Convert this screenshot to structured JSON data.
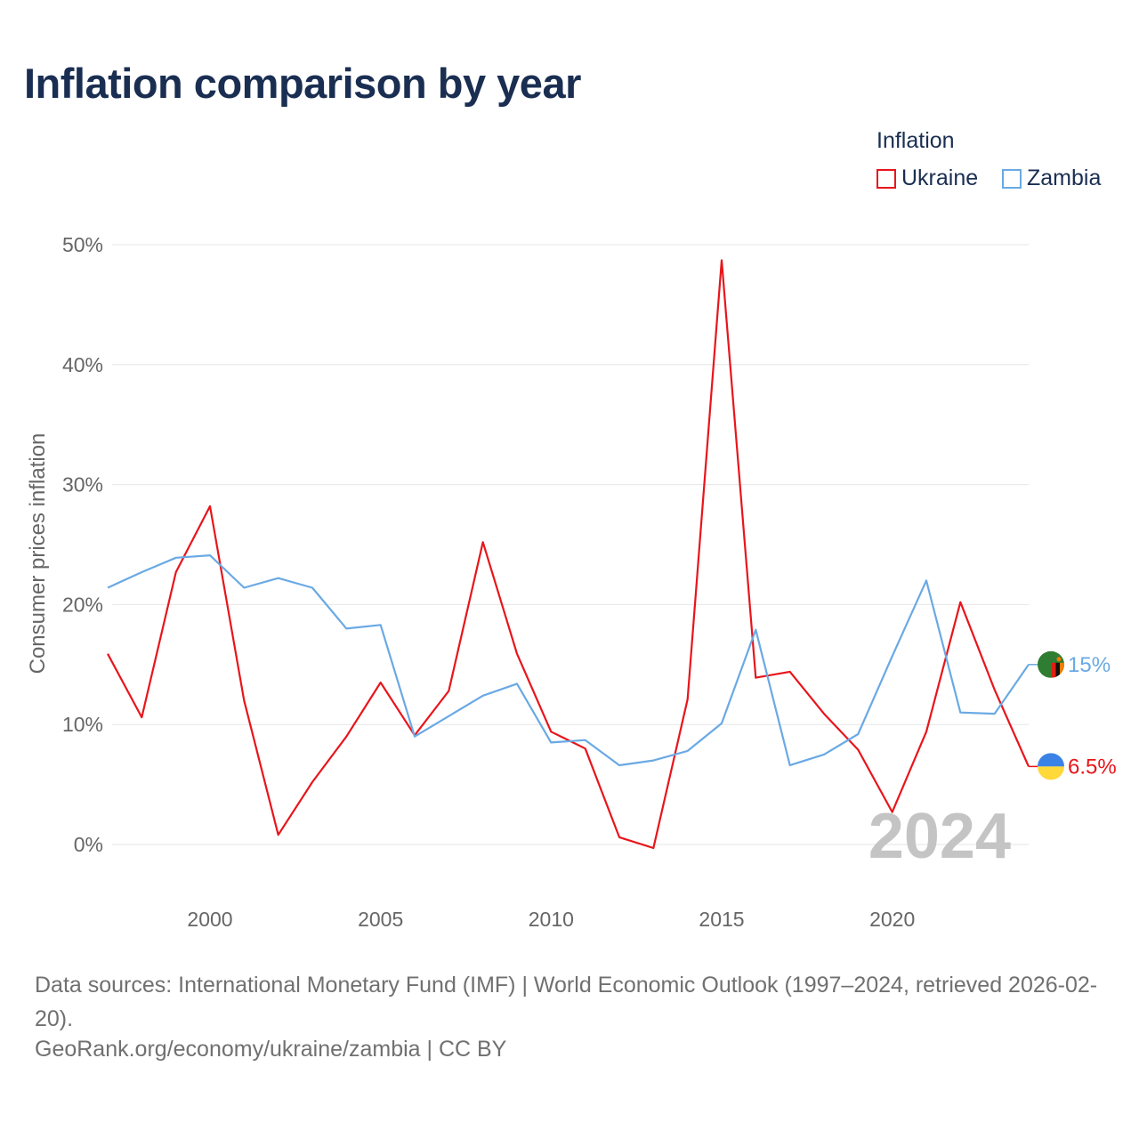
{
  "title": "Inflation comparison by year",
  "legend": {
    "title": "Inflation",
    "items": [
      {
        "label": "Ukraine",
        "color": "#e8151b"
      },
      {
        "label": "Zambia",
        "color": "#6aa9e4"
      }
    ]
  },
  "year_overlay": "2024",
  "source_text": "Data sources: International Monetary Fund (IMF) | World Economic Outlook (1997–2024, retrieved 2026-02-20).",
  "credit_text": "GeoRank.org/economy/ukraine/zambia | CC BY",
  "end_labels": {
    "ukraine": "6.5%",
    "zambia": "15%"
  },
  "chart_data": {
    "type": "line",
    "title": "Inflation comparison by year",
    "xlabel": "",
    "ylabel": "Consumer prices inflation",
    "xlim": [
      1997,
      2024
    ],
    "ylim": [
      0,
      50
    ],
    "x_ticks": [
      2000,
      2005,
      2010,
      2015,
      2020
    ],
    "y_ticks": [
      0,
      10,
      20,
      30,
      40,
      50
    ],
    "y_tick_labels": [
      "0%",
      "10%",
      "20%",
      "30%",
      "40%",
      "50%"
    ],
    "grid": true,
    "legend_position": "top-right",
    "x": [
      1997,
      1998,
      1999,
      2000,
      2001,
      2002,
      2003,
      2004,
      2005,
      2006,
      2007,
      2008,
      2009,
      2010,
      2011,
      2012,
      2013,
      2014,
      2015,
      2016,
      2017,
      2018,
      2019,
      2020,
      2021,
      2022,
      2023,
      2024
    ],
    "series": [
      {
        "name": "Ukraine",
        "color": "#e8151b",
        "values": [
          15.9,
          10.6,
          22.7,
          28.2,
          12.0,
          0.8,
          5.2,
          9.0,
          13.5,
          9.1,
          12.8,
          25.2,
          15.9,
          9.4,
          8.0,
          0.6,
          -0.3,
          12.1,
          48.7,
          13.9,
          14.4,
          10.9,
          7.9,
          2.7,
          9.4,
          20.2,
          12.9,
          6.5
        ]
      },
      {
        "name": "Zambia",
        "color": "#6aa9e4",
        "values": [
          21.4,
          22.7,
          23.9,
          24.1,
          21.4,
          22.2,
          21.4,
          18.0,
          18.3,
          9.0,
          10.7,
          12.4,
          13.4,
          8.5,
          8.7,
          6.6,
          7.0,
          7.8,
          10.1,
          17.9,
          6.6,
          7.5,
          9.2,
          15.7,
          22.0,
          11.0,
          10.9,
          15.0
        ]
      }
    ]
  }
}
